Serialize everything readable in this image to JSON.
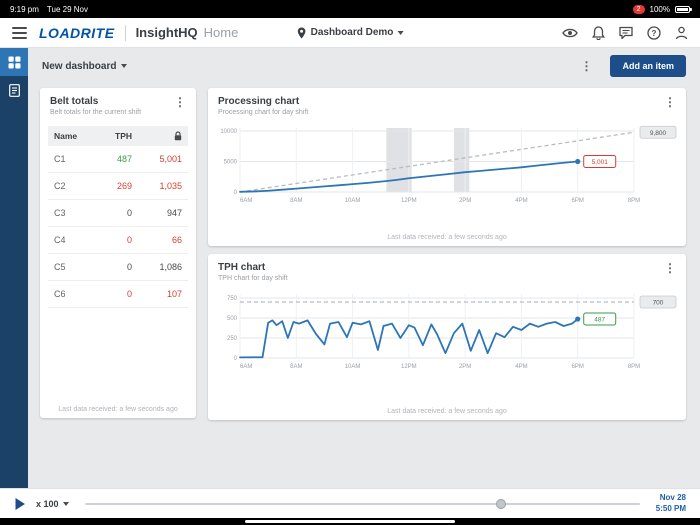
{
  "colors": {
    "accent": "#0054a6",
    "chart_line": "#2e75b6",
    "red": "#d23f31",
    "green": "#3a9a49",
    "default_text": "#4a4a4a",
    "sidebar": "#1c4166",
    "button": "#1d4e89"
  },
  "status_bar": {
    "time": "9:19 pm",
    "date": "Tue 29 Nov",
    "badge": "2",
    "battery": "100%"
  },
  "header": {
    "logo": "LOADRITE",
    "app": "InsightHQ",
    "page": "Home",
    "location": "Dashboard Demo"
  },
  "sidebar": {
    "items": [
      {
        "name": "dashboards",
        "active": true
      },
      {
        "name": "reports",
        "active": false
      }
    ]
  },
  "toolbar": {
    "dashboard_name": "New dashboard",
    "add_item": "Add an item"
  },
  "belt_totals": {
    "title": "Belt totals",
    "subtitle": "Belt totals for the current shift",
    "col_name": "Name",
    "col_tph": "TPH",
    "rows": [
      {
        "name": "C1",
        "tph": "487",
        "tph_color": "green",
        "total": "5,001",
        "total_color": "red"
      },
      {
        "name": "C2",
        "tph": "269",
        "tph_color": "red",
        "total": "1,035",
        "total_color": "red"
      },
      {
        "name": "C3",
        "tph": "0",
        "tph_color": "default",
        "total": "947",
        "total_color": "default"
      },
      {
        "name": "C4",
        "tph": "0",
        "tph_color": "red",
        "total": "66",
        "total_color": "red"
      },
      {
        "name": "C5",
        "tph": "0",
        "tph_color": "default",
        "total": "1,086",
        "total_color": "default"
      },
      {
        "name": "C6",
        "tph": "0",
        "tph_color": "red",
        "total": "107",
        "total_color": "red"
      }
    ],
    "footer": "Last data received: a few seconds ago"
  },
  "chart_data": [
    {
      "type": "line",
      "title": "Processing chart",
      "subtitle": "Processing chart for day shift",
      "footer": "Last data received: a few seconds ago",
      "xlim": [
        6,
        20
      ],
      "ylim": [
        0,
        10500
      ],
      "yticks": [
        0,
        5000,
        10000
      ],
      "xticks": {
        "hours": [
          6,
          8,
          10,
          12,
          14,
          16,
          18,
          20
        ],
        "labels": [
          "6AM",
          "8AM",
          "10AM",
          "12PM",
          "2PM",
          "4PM",
          "6PM",
          "8PM"
        ]
      },
      "bands": [
        [
          11.2,
          12.1
        ],
        [
          13.6,
          14.15
        ]
      ],
      "target_line": {
        "x": [
          6,
          20
        ],
        "y": [
          0,
          9800
        ],
        "label": "9,800"
      },
      "series": [
        {
          "name": "Processed tonnes",
          "x": [
            6,
            6.5,
            7,
            7.5,
            8,
            8.5,
            9,
            9.5,
            10,
            10.5,
            11,
            11.5,
            12,
            12.5,
            13,
            13.5,
            14,
            14.5,
            15,
            15.5,
            16,
            16.5,
            17,
            17.5,
            18
          ],
          "y": [
            30,
            90,
            200,
            380,
            560,
            740,
            920,
            1100,
            1290,
            1480,
            1700,
            1950,
            2250,
            2500,
            2750,
            3000,
            3250,
            3450,
            3650,
            3850,
            4050,
            4300,
            4550,
            4800,
            5001
          ]
        }
      ],
      "end_label": {
        "value": "5,001",
        "color": "red"
      }
    },
    {
      "type": "line",
      "title": "TPH chart",
      "subtitle": "TPH chart for day shift",
      "footer": "Last data received: a few seconds ago",
      "xlim": [
        6,
        20
      ],
      "ylim": [
        0,
        800
      ],
      "yticks": [
        0,
        250,
        500,
        750
      ],
      "xticks": {
        "hours": [
          6,
          8,
          10,
          12,
          14,
          16,
          18,
          20
        ],
        "labels": [
          "6AM",
          "8AM",
          "10AM",
          "12PM",
          "2PM",
          "4PM",
          "6PM",
          "8PM"
        ]
      },
      "bands": [],
      "target_line": {
        "y": 700,
        "label": "700"
      },
      "series": [
        {
          "name": "TPH",
          "x": [
            6,
            6.8,
            7.0,
            7.15,
            7.3,
            7.5,
            7.7,
            7.9,
            8.1,
            8.4,
            8.7,
            9.0,
            9.2,
            9.5,
            9.8,
            10.0,
            10.3,
            10.6,
            10.9,
            11.1,
            11.4,
            11.7,
            12.0,
            12.2,
            12.5,
            12.8,
            13.0,
            13.3,
            13.6,
            13.9,
            14.2,
            14.5,
            14.8,
            15.1,
            15.4,
            15.7,
            16.0,
            16.3,
            16.6,
            16.9,
            17.2,
            17.5,
            17.8,
            18.0
          ],
          "y": [
            8,
            10,
            440,
            470,
            410,
            460,
            250,
            450,
            430,
            470,
            300,
            170,
            430,
            450,
            260,
            440,
            420,
            460,
            100,
            400,
            430,
            250,
            410,
            380,
            160,
            420,
            300,
            60,
            310,
            430,
            90,
            350,
            60,
            310,
            260,
            390,
            350,
            430,
            390,
            430,
            450,
            400,
            430,
            487
          ]
        }
      ],
      "end_label": {
        "value": "487",
        "color": "green"
      }
    }
  ],
  "playback": {
    "speed": "x 100",
    "progress": 0.75,
    "date": "Nov 28",
    "time": "5:50 PM"
  }
}
